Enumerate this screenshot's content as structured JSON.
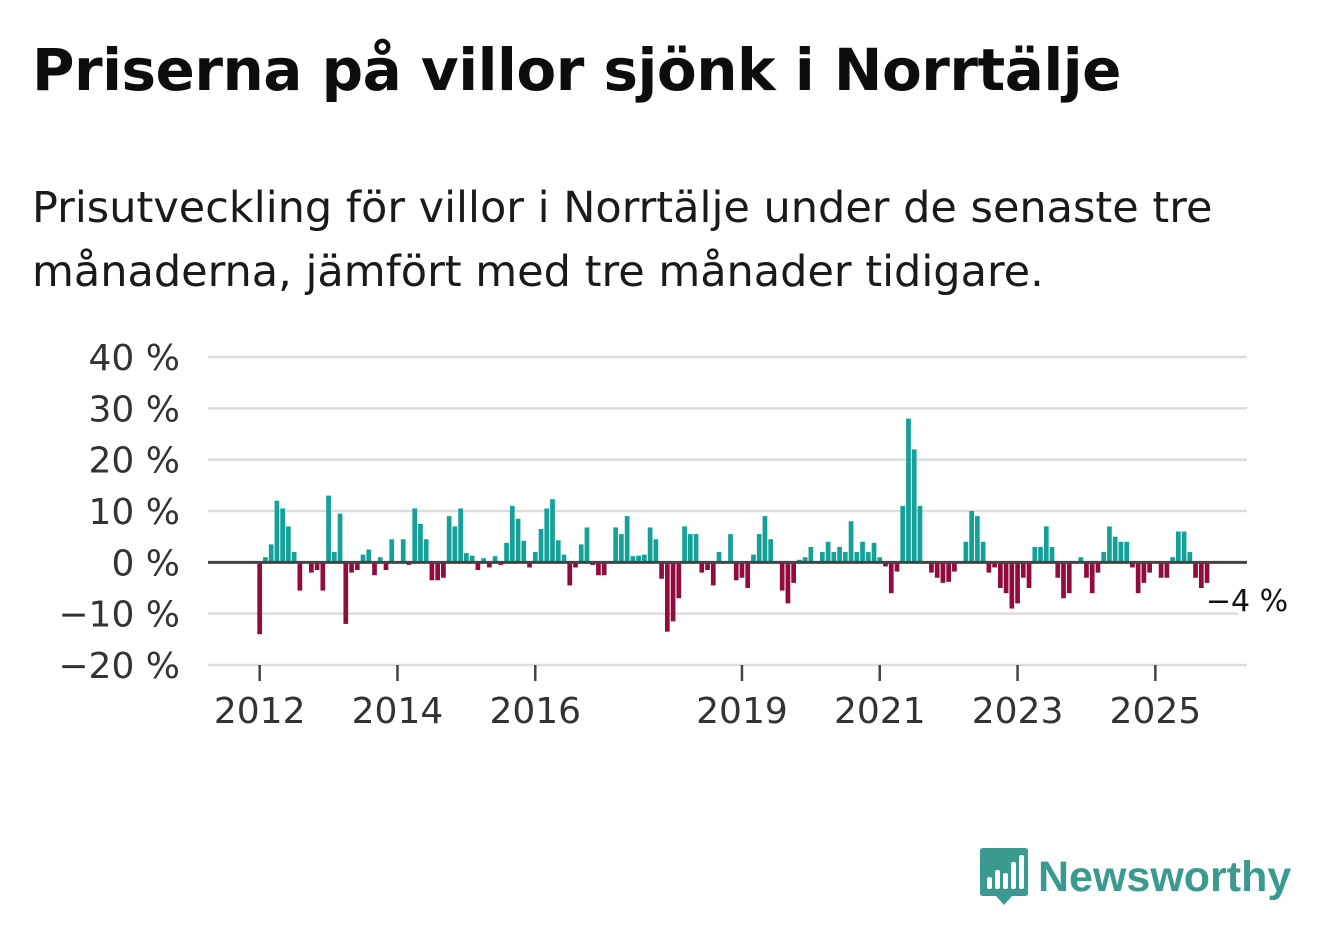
{
  "title": "Priserna på villor sjönk i Norrtälje",
  "subtitle": "Prisutveckling för villor i Norrtälje under de senaste tre månaderna, jämfört med tre månader tidigare.",
  "brand": {
    "name": "Newsworthy",
    "icon": "bar-chart-speech-bubble-icon",
    "color": "#3a9a8f"
  },
  "colors": {
    "positive": "#14a198",
    "negative": "#900c3f",
    "grid": "#dddddd",
    "zero": "#444444"
  },
  "chart_data": {
    "type": "bar",
    "title": "Priserna på villor sjönk i Norrtälje",
    "xlabel": "",
    "ylabel": "",
    "ylim": [
      -20,
      40
    ],
    "xlim": [
      2011.25,
      2026.33
    ],
    "yticks": [
      40,
      30,
      20,
      10,
      0,
      -10,
      -20
    ],
    "ytick_labels": [
      "40 %",
      "30 %",
      "20 %",
      "10 %",
      "0 %",
      "−10 %",
      "−20 %"
    ],
    "xticks": [
      2012,
      2014,
      2016,
      2019,
      2021,
      2023,
      2025
    ],
    "xtick_labels": [
      "2012",
      "2014",
      "2016",
      "2019",
      "2021",
      "2023",
      "2025"
    ],
    "grid": true,
    "start_year": 2012,
    "month_step": 1,
    "unit": "%",
    "last_value_label": "−4 %",
    "values": [
      -14,
      1,
      3.5,
      12,
      10.5,
      7,
      2,
      -5.5,
      0,
      -2,
      -1.5,
      -5.5,
      13,
      2,
      9.5,
      -12,
      -2,
      -1.5,
      1.5,
      2.5,
      -2.5,
      1,
      -1.5,
      4.5,
      0,
      4.5,
      -0.5,
      10.5,
      7.5,
      4.5,
      -3.5,
      -3.5,
      -3,
      9,
      7,
      10.5,
      1.8,
      1.3,
      -1.5,
      0.8,
      -1,
      1.2,
      -0.5,
      3.8,
      11,
      8.5,
      4.2,
      -1,
      2,
      6.5,
      10.5,
      12.3,
      4.3,
      1.5,
      -4.5,
      -1,
      3.5,
      6.8,
      -0.5,
      -2.5,
      -2.5,
      0,
      6.8,
      5.5,
      9,
      1.2,
      1.3,
      1.5,
      6.8,
      4.5,
      -3.2,
      -13.5,
      -11.5,
      -7,
      7,
      5.5,
      5.5,
      -2,
      -1.5,
      -4.5,
      2,
      0,
      5.5,
      -3.5,
      -3,
      -5,
      1.5,
      5.5,
      9,
      4.5,
      0,
      -5.5,
      -8,
      -4,
      0.5,
      1,
      3,
      0,
      2,
      4,
      2,
      3,
      2,
      8,
      2,
      4,
      2,
      3.8,
      1,
      -0.8,
      -6,
      -1.8,
      11,
      28,
      22,
      11,
      0,
      -2,
      -3,
      -4,
      -3.8,
      -1.8,
      0,
      4,
      10,
      9,
      4,
      -2,
      -1,
      -5,
      -6,
      -9,
      -8,
      -3,
      -5,
      3,
      3,
      7,
      3,
      -3,
      -7,
      -6,
      0,
      1,
      -3,
      -6,
      -2,
      2,
      7,
      5,
      4,
      4,
      -1,
      -6,
      -4,
      -2,
      0,
      -3,
      -3,
      1,
      6,
      6,
      2,
      -3,
      -5,
      -4
    ]
  }
}
